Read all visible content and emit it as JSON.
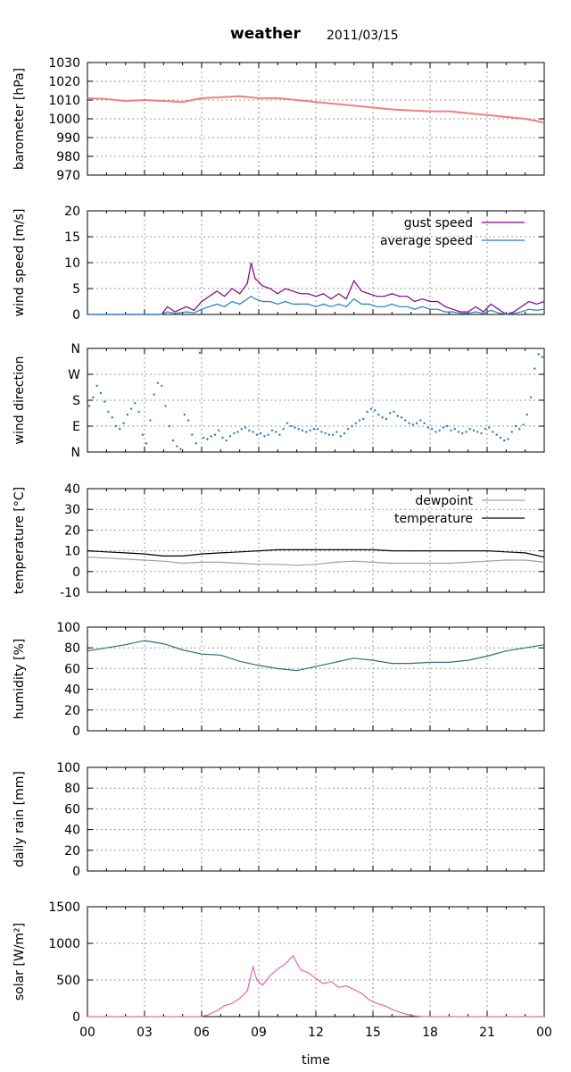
{
  "header": {
    "title": "weather",
    "date": "2011/03/15"
  },
  "shared_x": {
    "label": "time",
    "ticks": [
      "00",
      "03",
      "06",
      "09",
      "12",
      "15",
      "18",
      "21",
      "00"
    ]
  },
  "chart_data": [
    {
      "id": "barometer",
      "type": "line",
      "ylabel": "barometer [hPa]",
      "ylim": [
        970,
        1030
      ],
      "yticks": [
        "1030",
        "1020",
        "1010",
        "1000",
        "990",
        "980",
        "970"
      ],
      "grid": true,
      "series": [
        {
          "color": "#f08080",
          "x": [
            0,
            1,
            2,
            3,
            4,
            5,
            6,
            7,
            8,
            9,
            10,
            11,
            12,
            13,
            14,
            15,
            16,
            17,
            18,
            19,
            20,
            21,
            22,
            23,
            24
          ],
          "y": [
            1011,
            1010.5,
            1009.5,
            1010,
            1009.5,
            1009,
            1011,
            1011.5,
            1012,
            1011,
            1011,
            1010,
            1009,
            1008,
            1007,
            1006,
            1005,
            1004.5,
            1004,
            1004,
            1003,
            1002,
            1001,
            1000,
            998
          ]
        }
      ]
    },
    {
      "id": "wind-speed",
      "type": "line",
      "ylabel": "wind speed [m/s]",
      "ylim": [
        0,
        20
      ],
      "yticks": [
        "20",
        "15",
        "10",
        "5",
        "0"
      ],
      "grid": true,
      "legend_position": "top-right",
      "series": [
        {
          "name": "gust speed",
          "color": "#800080",
          "x": [
            0,
            3.9,
            4.2,
            4.6,
            5.2,
            5.6,
            6,
            6.4,
            6.8,
            7.2,
            7.6,
            8,
            8.4,
            8.6,
            8.8,
            9.2,
            9.6,
            10,
            10.4,
            10.8,
            11.2,
            11.6,
            12,
            12.4,
            12.8,
            13.2,
            13.6,
            14,
            14.4,
            14.8,
            15.2,
            15.6,
            16,
            16.4,
            16.8,
            17.2,
            17.6,
            18,
            18.4,
            18.8,
            19.2,
            19.6,
            20,
            20.4,
            20.8,
            21.2,
            21.6,
            22,
            22.4,
            22.8,
            23.2,
            23.6,
            24
          ],
          "y": [
            0,
            0,
            1.5,
            0.5,
            1.5,
            0.8,
            2.5,
            3.5,
            4.5,
            3.5,
            5,
            4,
            6,
            10,
            7,
            5.5,
            5,
            4,
            5,
            4.5,
            4,
            4,
            3.5,
            4,
            3,
            4,
            3,
            6.5,
            4.5,
            4,
            3.5,
            3.5,
            4,
            3.5,
            3.5,
            2.5,
            3,
            2.5,
            2.5,
            1.5,
            1,
            0.5,
            0.5,
            1.5,
            0.5,
            2,
            1,
            0,
            0.5,
            1.5,
            2.5,
            2,
            2.5
          ]
        },
        {
          "name": "average speed",
          "color": "#1f7fbf",
          "x": [
            0,
            3.9,
            4.2,
            4.6,
            5.2,
            5.6,
            6,
            6.4,
            6.8,
            7.2,
            7.6,
            8,
            8.4,
            8.6,
            8.8,
            9.2,
            9.6,
            10,
            10.4,
            10.8,
            11.2,
            11.6,
            12,
            12.4,
            12.8,
            13.2,
            13.6,
            14,
            14.4,
            14.8,
            15.2,
            15.6,
            16,
            16.4,
            16.8,
            17.2,
            17.6,
            18,
            18.4,
            18.8,
            19.2,
            19.6,
            20,
            20.4,
            20.8,
            21.2,
            21.6,
            22,
            22.4,
            22.8,
            23.2,
            23.6,
            24
          ],
          "y": [
            0,
            0,
            0.5,
            0.2,
            0.5,
            0.3,
            1,
            1.5,
            2,
            1.5,
            2.5,
            2,
            3,
            3.5,
            3,
            2.5,
            2.5,
            2,
            2.5,
            2,
            2,
            2,
            1.5,
            2,
            1.5,
            2,
            1.5,
            3,
            2,
            2,
            1.5,
            1.5,
            2,
            1.5,
            1.5,
            1,
            1.5,
            1,
            1,
            0.5,
            0.5,
            0.2,
            0.2,
            0.5,
            0.2,
            0.8,
            0.3,
            0,
            0.2,
            0.5,
            1,
            0.8,
            1
          ]
        }
      ]
    },
    {
      "id": "wind-direction",
      "type": "scatter",
      "ylabel": "wind direction",
      "ylim": [
        0,
        360
      ],
      "yticks": [
        "N",
        "W",
        "S",
        "E",
        "N"
      ],
      "grid": true,
      "series": [
        {
          "color": "#1f7fbf",
          "x": [
            0.1,
            0.3,
            0.5,
            0.7,
            0.9,
            1.1,
            1.3,
            1.5,
            1.7,
            1.9,
            2.1,
            2.3,
            2.5,
            2.7,
            2.9,
            3.1,
            3.3,
            3.5,
            3.7,
            3.9,
            4.1,
            4.3,
            4.5,
            4.7,
            4.9,
            5.1,
            5.3,
            5.5,
            5.7,
            5.9,
            6.1,
            6.3,
            6.5,
            6.7,
            6.9,
            7.1,
            7.3,
            7.5,
            7.7,
            7.9,
            8.1,
            8.3,
            8.5,
            8.7,
            8.9,
            9.1,
            9.3,
            9.5,
            9.7,
            9.9,
            10.1,
            10.3,
            10.5,
            10.7,
            10.9,
            11.1,
            11.3,
            11.5,
            11.7,
            11.9,
            12.1,
            12.3,
            12.5,
            12.7,
            12.9,
            13.1,
            13.3,
            13.5,
            13.7,
            13.9,
            14.1,
            14.3,
            14.5,
            14.7,
            14.9,
            15.1,
            15.3,
            15.5,
            15.7,
            15.9,
            16.1,
            16.3,
            16.5,
            16.7,
            16.9,
            17.1,
            17.3,
            17.5,
            17.7,
            17.9,
            18.1,
            18.3,
            18.5,
            18.7,
            18.9,
            19.1,
            19.3,
            19.5,
            19.7,
            19.9,
            20.1,
            20.3,
            20.5,
            20.7,
            20.9,
            21.1,
            21.3,
            21.5,
            21.7,
            21.9,
            22.1,
            22.3,
            22.5,
            22.7,
            22.9,
            23.1,
            23.3,
            23.5,
            23.7,
            23.9
          ],
          "y": [
            160,
            190,
            230,
            205,
            175,
            140,
            120,
            90,
            80,
            100,
            130,
            150,
            170,
            140,
            60,
            30,
            110,
            200,
            240,
            230,
            160,
            90,
            40,
            20,
            10,
            130,
            110,
            60,
            30,
            345,
            50,
            45,
            55,
            60,
            75,
            50,
            40,
            55,
            65,
            70,
            80,
            85,
            75,
            70,
            60,
            65,
            55,
            60,
            75,
            70,
            60,
            80,
            100,
            90,
            85,
            80,
            75,
            70,
            75,
            80,
            80,
            70,
            65,
            60,
            60,
            70,
            55,
            65,
            80,
            90,
            100,
            110,
            115,
            140,
            150,
            145,
            130,
            120,
            115,
            135,
            140,
            125,
            120,
            110,
            100,
            95,
            100,
            110,
            100,
            85,
            80,
            70,
            75,
            85,
            90,
            75,
            80,
            70,
            65,
            70,
            80,
            75,
            70,
            65,
            80,
            85,
            70,
            60,
            50,
            40,
            45,
            70,
            90,
            80,
            95,
            130,
            190,
            290,
            340,
            330
          ]
        }
      ]
    },
    {
      "id": "temperature",
      "type": "line",
      "ylabel": "temperature [°C]",
      "ylim": [
        -10,
        40
      ],
      "yticks": [
        "40",
        "30",
        "20",
        "10",
        "0",
        "-10"
      ],
      "grid": true,
      "legend_position": "top-right",
      "series": [
        {
          "name": "dewpoint",
          "color": "#a0a0a0",
          "x": [
            0,
            1,
            2,
            3,
            4,
            5,
            6,
            7,
            8,
            9,
            10,
            11,
            12,
            13,
            14,
            15,
            16,
            17,
            18,
            19,
            20,
            21,
            22,
            23,
            24
          ],
          "y": [
            7,
            6.5,
            6,
            5.5,
            5,
            4,
            4.5,
            4.5,
            4,
            3.5,
            3.5,
            3,
            3.5,
            4.5,
            5,
            4.5,
            4,
            4,
            4,
            4,
            4.5,
            5,
            5.5,
            5.5,
            4.5
          ]
        },
        {
          "name": "temperature",
          "color": "#000000",
          "x": [
            0,
            1,
            2,
            3,
            4,
            5,
            6,
            7,
            8,
            9,
            10,
            11,
            12,
            13,
            14,
            15,
            16,
            17,
            18,
            19,
            20,
            21,
            22,
            23,
            24
          ],
          "y": [
            10,
            9.5,
            9,
            8.5,
            7.5,
            7.5,
            8.5,
            9,
            9.5,
            10,
            10.5,
            10.5,
            10.5,
            10.5,
            10.5,
            10.5,
            10,
            10,
            10,
            10,
            10,
            10,
            9.5,
            9,
            7
          ]
        }
      ]
    },
    {
      "id": "humidity",
      "type": "line",
      "ylabel": "humidity [%]",
      "ylim": [
        0,
        100
      ],
      "yticks": [
        "100",
        "80",
        "60",
        "40",
        "20",
        "0"
      ],
      "grid": true,
      "series": [
        {
          "color": "#2e6e7e",
          "x": [
            0,
            1,
            2,
            3,
            4,
            5,
            6,
            7,
            8,
            9,
            10,
            11,
            12,
            13,
            14,
            15,
            16,
            17,
            18,
            19,
            20,
            21,
            22,
            23,
            24
          ],
          "y": [
            77,
            80,
            83,
            87,
            84,
            78,
            74,
            73,
            67,
            63,
            60,
            58,
            62,
            66,
            70,
            68,
            65,
            65,
            66,
            66,
            68,
            72,
            77,
            80,
            83
          ]
        }
      ]
    },
    {
      "id": "daily-rain",
      "type": "line",
      "ylabel": "daily rain [mm]",
      "ylim": [
        0,
        100
      ],
      "yticks": [
        "100",
        "80",
        "60",
        "40",
        "20",
        "0"
      ],
      "grid": true,
      "series": []
    },
    {
      "id": "solar",
      "type": "line",
      "ylabel": "solar [W/m²]",
      "ylim": [
        0,
        1500
      ],
      "yticks": [
        "1500",
        "1000",
        "500",
        "0"
      ],
      "grid": true,
      "series": [
        {
          "color": "#e866b0",
          "x": [
            0,
            5.9,
            6.3,
            6.8,
            7.2,
            7.6,
            8,
            8.4,
            8.7,
            8.9,
            9.2,
            9.6,
            10,
            10.4,
            10.8,
            11.2,
            11.6,
            12,
            12.4,
            12.8,
            13.2,
            13.6,
            14,
            14.4,
            14.8,
            15.2,
            15.6,
            16,
            16.4,
            16.8,
            17.2,
            17.6,
            24
          ],
          "y": [
            0,
            0,
            20,
            80,
            150,
            180,
            250,
            350,
            680,
            500,
            430,
            560,
            650,
            720,
            830,
            640,
            600,
            520,
            450,
            480,
            400,
            420,
            370,
            320,
            230,
            180,
            150,
            100,
            60,
            30,
            10,
            0,
            0
          ]
        }
      ]
    }
  ]
}
